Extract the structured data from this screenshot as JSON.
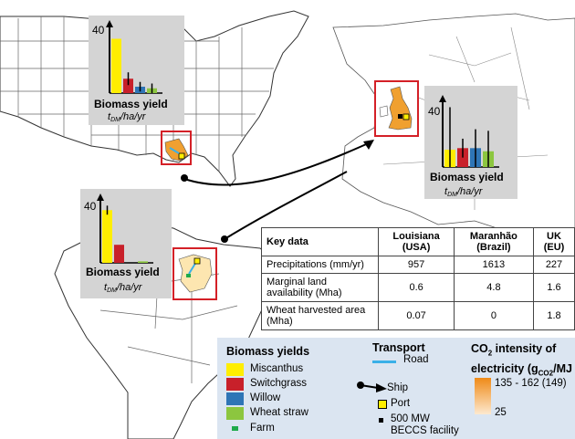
{
  "charts": {
    "usa": {
      "ymax_label": "40",
      "title": "Biomass yield",
      "unit_main": "t",
      "unit_sub": "DM",
      "unit_rest": "/ha/yr",
      "values": [
        34,
        9,
        4,
        3
      ],
      "errors": [
        0,
        4,
        3,
        3
      ]
    },
    "brazil": {
      "ymax_label": "40",
      "title": "Biomass yield",
      "unit_main": "t",
      "unit_sub": "DM",
      "unit_rest": "/ha/yr",
      "values": [
        35,
        12,
        0,
        1
      ],
      "errors": [
        3,
        0,
        0,
        0
      ]
    },
    "uk": {
      "ymax_label": "40",
      "title": "Biomass yield",
      "unit_main": "t",
      "unit_sub": "DM",
      "unit_rest": "/ha/yr",
      "values": [
        11,
        12,
        12,
        10
      ],
      "errors": [
        27,
        6,
        12,
        13
      ]
    }
  },
  "bar_colors": [
    "#ffee00",
    "#c8202a",
    "#2e75b6",
    "#8cc63f"
  ],
  "table": {
    "headers": [
      "Key data",
      "Louisiana (USA)",
      "Maranhão (Brazil)",
      "UK (EU)"
    ],
    "rows": [
      {
        "label": "Precipitations (mm/yr)",
        "values": [
          "957",
          "1613",
          "227"
        ]
      },
      {
        "label": "Marginal land availability (Mha)",
        "values": [
          "0.6",
          "4.8",
          "1.6"
        ]
      },
      {
        "label": "Wheat harvested area (Mha)",
        "values": [
          "0.07",
          "0",
          "1.8"
        ]
      }
    ]
  },
  "legend": {
    "biomass_title": "Biomass yields",
    "items": [
      "Miscanthus",
      "Switchgrass",
      "Willow",
      "Wheat straw"
    ],
    "farm": "Farm",
    "transport_title": "Transport",
    "road": "Road",
    "ship": "Ship",
    "port": "Port",
    "beccs": "500 MW BECCS facility",
    "co2_title_1": "CO",
    "co2_sub": "2",
    "co2_title_2": " intensity of",
    "co2_title_3": "electricity (g",
    "co2_unit_sub": "CO2",
    "co2_title_4": "/MJ",
    "co2_high": "135 - 162 (149)",
    "co2_low": "25"
  }
}
